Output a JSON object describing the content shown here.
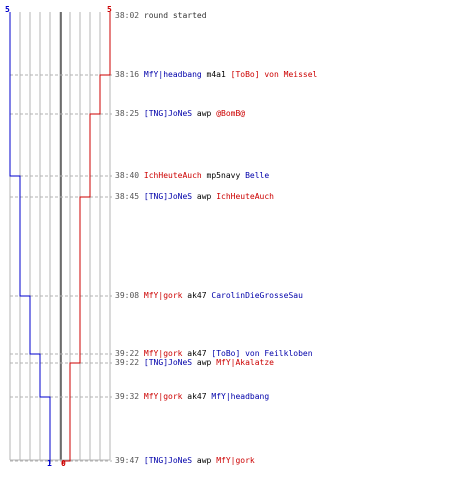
{
  "colors": {
    "blue_team": "#0000cc",
    "red_team": "#cc0000",
    "grid": "#b5b5b5",
    "center_line": "#555555",
    "dashed_guide": "#b0b0b0"
  },
  "score": {
    "blue_start": "5",
    "red_start": "5",
    "blue_end": "1",
    "red_end": "0",
    "max": 5
  },
  "events": [
    {
      "time": "38:02",
      "plain": "round started"
    },
    {
      "time": "38:16",
      "killer": "MfY|headbang",
      "killer_team": "blue",
      "weapon": "m4a1",
      "victim": "[ToBo] von Meissel",
      "victim_team": "red"
    },
    {
      "time": "38:25",
      "killer": "[TNG]JoNeS",
      "killer_team": "blue",
      "weapon": "awp",
      "victim": "@BomB@",
      "victim_team": "red"
    },
    {
      "time": "38:40",
      "killer": "IchHeuteAuch",
      "killer_team": "red",
      "weapon": "mp5navy",
      "victim": "Belle",
      "victim_team": "blue"
    },
    {
      "time": "38:45",
      "killer": "[TNG]JoNeS",
      "killer_team": "blue",
      "weapon": "awp",
      "victim": "IchHeuteAuch",
      "victim_team": "red"
    },
    {
      "time": "39:08",
      "killer": "MfY|gork",
      "killer_team": "red",
      "weapon": "ak47",
      "victim": "CarolinDieGrosseSau",
      "victim_team": "blue"
    },
    {
      "time": "39:22",
      "killer": "MfY|gork",
      "killer_team": "red",
      "weapon": "ak47",
      "victim": "[ToBo] von Feilkloben",
      "victim_team": "blue"
    },
    {
      "time": "39:22",
      "killer": "[TNG]JoNeS",
      "killer_team": "blue",
      "weapon": "awp",
      "victim": "MfY|Akalatze",
      "victim_team": "red"
    },
    {
      "time": "39:32",
      "killer": "MfY|gork",
      "killer_team": "red",
      "weapon": "ak47",
      "victim": "MfY|headbang",
      "victim_team": "blue"
    },
    {
      "time": "39:47",
      "killer": "[TNG]JoNeS",
      "killer_team": "blue",
      "weapon": "awp",
      "victim": "MfY|gork",
      "victim_team": "red"
    }
  ]
}
